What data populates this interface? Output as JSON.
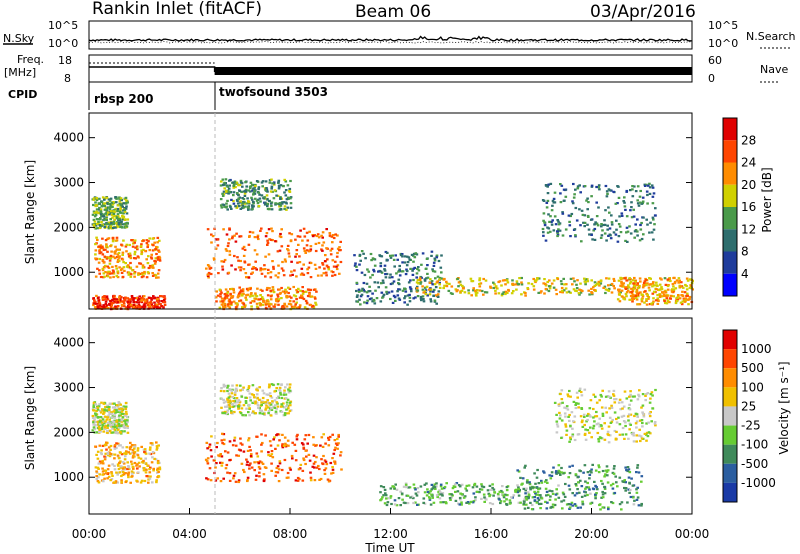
{
  "header": {
    "station": "Rankin Inlet (fitACF)",
    "beam": "Beam 06",
    "date": "03/Apr/2016"
  },
  "strips": {
    "nsky_label": "N.Sky",
    "nsearch_label": "N.Search",
    "freq_label": "Freq.",
    "freq_unit": "[MHz]",
    "nave_label": "Nave",
    "cpid_label": "CPID",
    "noise_ticks": [
      "10^5",
      "10^0"
    ],
    "freq_ticks": [
      "18",
      "8"
    ],
    "nave_ticks": [
      "60",
      "0"
    ]
  },
  "cpid_segments": [
    {
      "label": "rbsp 200",
      "start_hour": 0,
      "end_hour": 5
    },
    {
      "label": "twofsound 3503",
      "start_hour": 5,
      "end_hour": 24
    }
  ],
  "x_axis": {
    "title": "Time UT",
    "tick_labels": [
      "00:00",
      "04:00",
      "08:00",
      "12:00",
      "16:00",
      "20:00",
      "00:00"
    ],
    "range_hours": [
      0,
      24
    ]
  },
  "power_panel": {
    "ylabel": "Slant Range [km]",
    "y_ticks": [
      "4000",
      "3000",
      "2000",
      "1000"
    ],
    "colorbar_title": "Power [dB]",
    "colorbar_ticks": [
      "28",
      "24",
      "20",
      "16",
      "12",
      "8",
      "4"
    ],
    "colors": [
      "#0000ff",
      "#1f3c9c",
      "#2e6e6e",
      "#4a9a4a",
      "#d0d000",
      "#ff8c00",
      "#ff4500",
      "#e00000"
    ]
  },
  "velocity_panel": {
    "ylabel": "Slant Range [km]",
    "y_ticks": [
      "4000",
      "3000",
      "2000",
      "1000"
    ],
    "colorbar_title": "Velocity [m s⁻¹]",
    "colorbar_ticks": [
      "1000",
      "500",
      "100",
      "25",
      "-25",
      "-100",
      "-500",
      "-1000"
    ],
    "colors": [
      "#1a3aa6",
      "#2b5ea0",
      "#3f8a5a",
      "#66cc33",
      "#c8c8c8",
      "#f0c000",
      "#ff8c00",
      "#ff4500",
      "#e00000"
    ]
  },
  "chart_data": [
    {
      "type": "heatmap",
      "title": "Power",
      "x_range_hours": [
        0,
        24
      ],
      "y_range_km": [
        180,
        4550
      ],
      "value_range_db": [
        0,
        31
      ],
      "regions": [
        {
          "x": [
            0.2,
            2.8
          ],
          "y": [
            900,
            1800
          ],
          "value": 22
        },
        {
          "x": [
            0.1,
            1.5
          ],
          "y": [
            2000,
            2700
          ],
          "value": 14
        },
        {
          "x": [
            0.1,
            3.0
          ],
          "y": [
            200,
            500
          ],
          "value": 26
        },
        {
          "x": [
            4.6,
            10.0
          ],
          "y": [
            900,
            2000
          ],
          "value": 24
        },
        {
          "x": [
            5.0,
            9.0
          ],
          "y": [
            200,
            700
          ],
          "value": 22
        },
        {
          "x": [
            5.2,
            8.0
          ],
          "y": [
            2400,
            3100
          ],
          "value": 12
        },
        {
          "x": [
            10.5,
            14.0
          ],
          "y": [
            300,
            1500
          ],
          "value": 10
        },
        {
          "x": [
            13.0,
            21.5
          ],
          "y": [
            500,
            900
          ],
          "value": 18
        },
        {
          "x": [
            18.0,
            22.5
          ],
          "y": [
            1700,
            3000
          ],
          "value": 10
        },
        {
          "x": [
            21.0,
            24.0
          ],
          "y": [
            300,
            900
          ],
          "value": 20
        }
      ]
    },
    {
      "type": "heatmap",
      "title": "Velocity",
      "x_range_hours": [
        0,
        24
      ],
      "y_range_km": [
        180,
        4550
      ],
      "value_range_ms": [
        -1000,
        1000
      ],
      "regions": [
        {
          "x": [
            0.2,
            2.8
          ],
          "y": [
            900,
            1800
          ],
          "value": 300
        },
        {
          "x": [
            0.1,
            1.5
          ],
          "y": [
            2000,
            2700
          ],
          "value": 0
        },
        {
          "x": [
            4.6,
            10.0
          ],
          "y": [
            900,
            2000
          ],
          "value": 600
        },
        {
          "x": [
            5.2,
            8.0
          ],
          "y": [
            2400,
            3100
          ],
          "value": 0
        },
        {
          "x": [
            11.5,
            18.0
          ],
          "y": [
            400,
            900
          ],
          "value": -300
        },
        {
          "x": [
            17.0,
            22.0
          ],
          "y": [
            300,
            1300
          ],
          "value": -400
        },
        {
          "x": [
            18.5,
            22.5
          ],
          "y": [
            1800,
            3000
          ],
          "value": 0
        }
      ]
    }
  ]
}
